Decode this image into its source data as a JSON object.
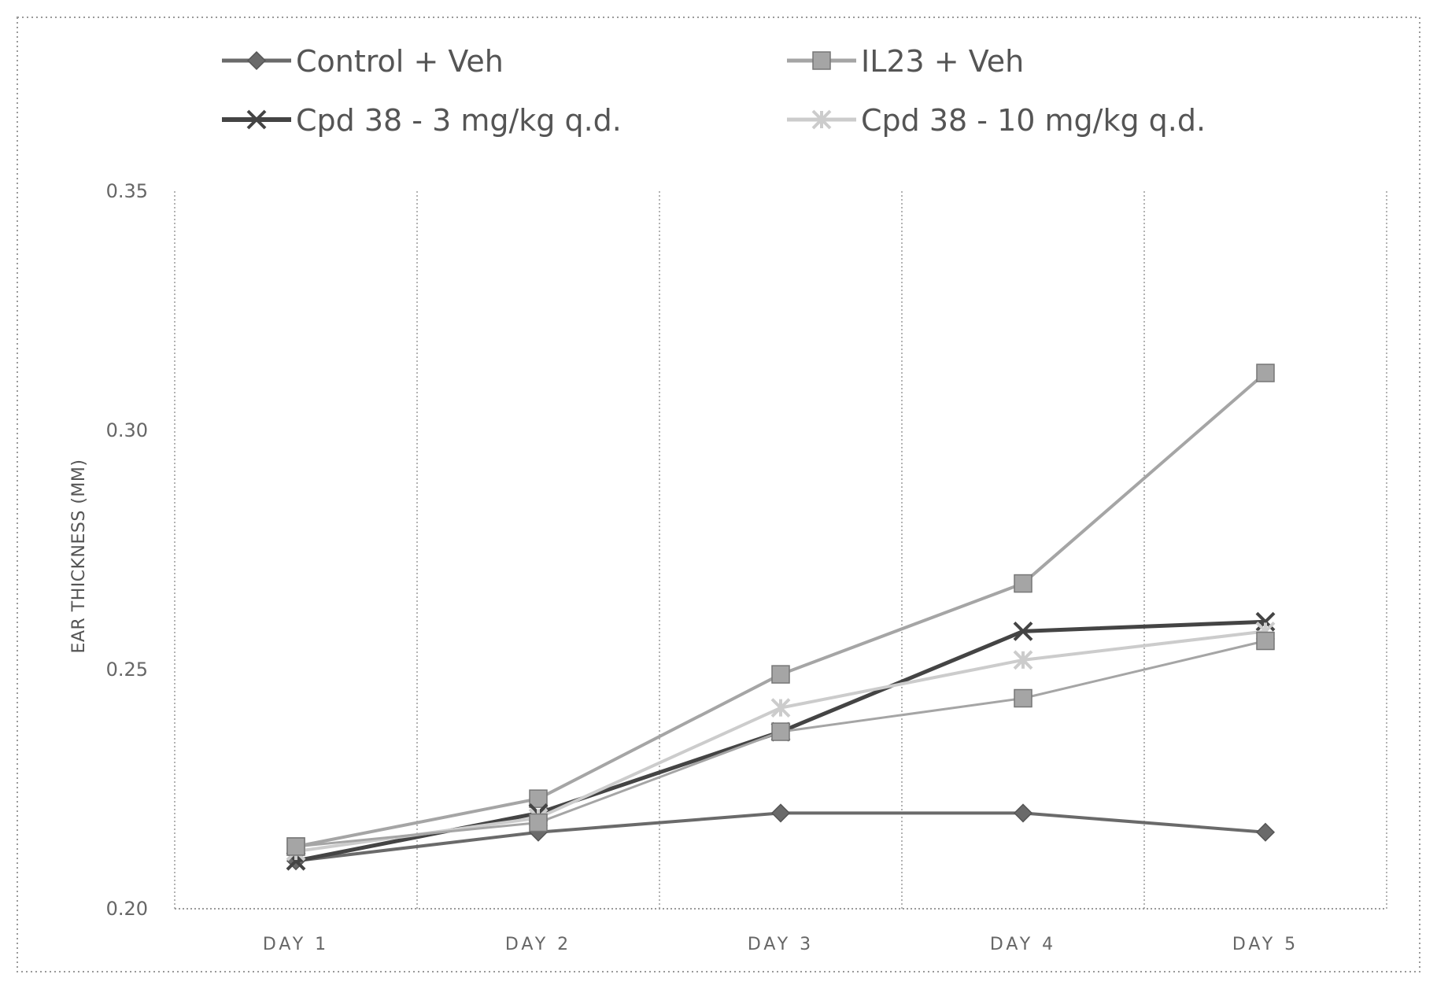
{
  "chart_data": {
    "type": "line",
    "categories": [
      "DAY 1",
      "DAY 2",
      "DAY 3",
      "DAY 4",
      "DAY 5"
    ],
    "ylabel": "EAR THICKNESS (MM)",
    "yticks": [
      "0.20",
      "0.25",
      "0.30",
      "0.35"
    ],
    "ylim": [
      0.2,
      0.35
    ],
    "grid": "vertical dotted",
    "legend_position": "top",
    "series": [
      {
        "name": "Control + Veh",
        "values": [
          0.21,
          0.216,
          0.22,
          0.22,
          0.216
        ],
        "color": "#6a6a6a",
        "marker": "diamond",
        "width": 4
      },
      {
        "name": "IL23 + Veh",
        "values": [
          0.213,
          0.223,
          0.249,
          0.268,
          0.312
        ],
        "color": "#a5a5a5",
        "marker": "square",
        "width": 4
      },
      {
        "name": "Cpd 38 - 3 mg/kg q.d.",
        "values": [
          0.21,
          0.22,
          0.237,
          0.258,
          0.26
        ],
        "color": "#444444",
        "marker": "x",
        "width": 5
      },
      {
        "name": "Cpd 38 - 10 mg/kg q.d.",
        "values": [
          0.212,
          0.219,
          0.242,
          0.252,
          0.258
        ],
        "color": "#cccccc",
        "marker": "star",
        "width": 4
      },
      {
        "name": "",
        "values": [
          0.213,
          0.218,
          0.237,
          0.244,
          0.256
        ],
        "color": "#a5a5a5",
        "marker": "square",
        "width": 3
      }
    ]
  }
}
